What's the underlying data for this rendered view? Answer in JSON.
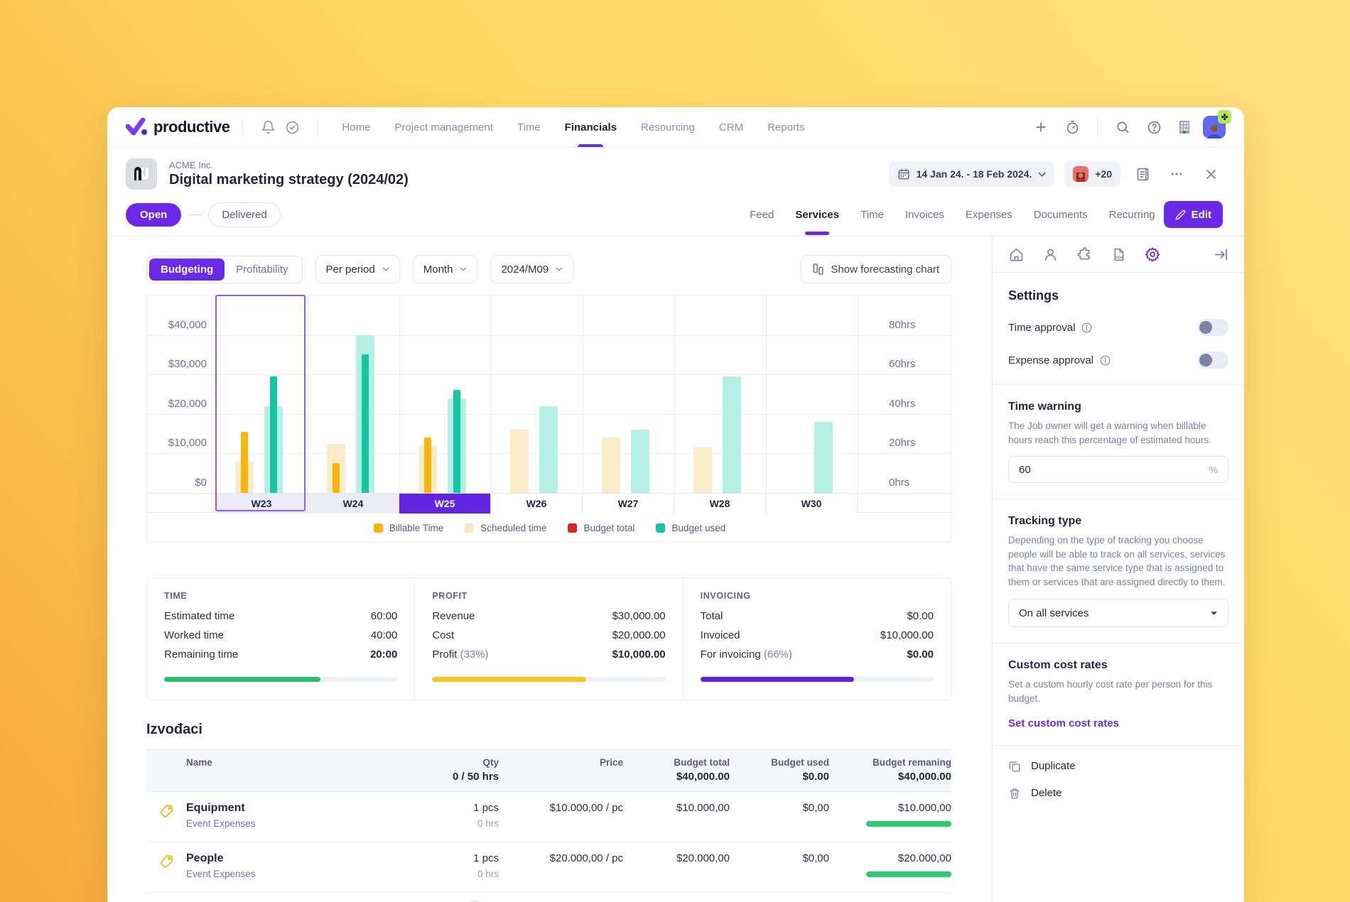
{
  "accent_color": "#6B28E9",
  "topnav": {
    "brand": "productive",
    "items": [
      "Home",
      "Project management",
      "Time",
      "Financials",
      "Resourcing",
      "CRM",
      "Reports"
    ],
    "active_item": "Financials"
  },
  "header": {
    "client_name": "ACME Inc.",
    "title": "Digital marketing strategy (2024/02)",
    "date_range": "14 Jan 24. - 18 Feb 2024.",
    "members_more": "+20"
  },
  "status": {
    "open_label": "Open",
    "delivered_label": "Delivered"
  },
  "tabs": {
    "items": [
      "Feed",
      "Services",
      "Time",
      "Invoices",
      "Expenses",
      "Documents",
      "Recurring"
    ],
    "active_item": "Services",
    "edit_label": "Edit"
  },
  "controls": {
    "view_options": [
      "Budgeting",
      "Profitability"
    ],
    "active_view": "Budgeting",
    "period_dropdown": "Per period",
    "granularity_dropdown": "Month",
    "month_dropdown": "2024/M09",
    "forecast_button": "Show forecasting chart"
  },
  "chart_data": {
    "type": "bar",
    "title": "",
    "categories": [
      "W23",
      "W24",
      "W25",
      "W26",
      "W27",
      "W28",
      "W30"
    ],
    "series": [
      {
        "name": "Scheduled time",
        "color": "#FAECC8",
        "bar": "wide-yellow",
        "values": [
          8000,
          12500,
          12000,
          16000,
          14000,
          11500,
          null
        ]
      },
      {
        "name": "Billable Time",
        "color": "#FBB40B",
        "bar": "narrow-yellow",
        "values": [
          15500,
          7500,
          14000,
          null,
          null,
          null,
          null
        ]
      },
      {
        "name": "Budget total",
        "color": "#B4F0E4",
        "bar": "wide-teal",
        "values": [
          22000,
          40000,
          24000,
          22000,
          16000,
          29500,
          18000
        ]
      },
      {
        "name": "Budget used",
        "color": "#14C6A4",
        "bar": "narrow-teal",
        "values": [
          29500,
          35000,
          26000,
          null,
          null,
          null,
          null
        ]
      }
    ],
    "left_axis_labels": [
      "$40,000",
      "$30,000",
      "$20,000",
      "$10,000",
      "$0"
    ],
    "right_axis_labels": [
      "80hrs",
      "60hrs",
      "40hrs",
      "20hrs",
      "0hrs"
    ],
    "ylim_money": [
      0,
      50000
    ],
    "grid": true,
    "selected_week": "W25",
    "outlined_week": "W23",
    "past_weeks": [
      "W23",
      "W24"
    ],
    "legend_position": "bottom",
    "legend": [
      {
        "label": "Billable Time",
        "color": "#FBB40B"
      },
      {
        "label": "Scheduled time",
        "color": "#FAE9C0"
      },
      {
        "label": "Budget total",
        "color": "#D7281D"
      },
      {
        "label": "Budget used",
        "color": "#10C3A5"
      }
    ]
  },
  "summary": {
    "time": {
      "title": "TIME",
      "rows": [
        {
          "label": "Estimated time",
          "value": "60:00",
          "bold": false
        },
        {
          "label": "Worked time",
          "value": "40:00",
          "bold": false
        },
        {
          "label": "Remaining time",
          "value": "20:00",
          "bold": true
        }
      ],
      "progress_pct": 67,
      "progress_color": "#25C16F"
    },
    "profit": {
      "title": "PROFIT",
      "rows": [
        {
          "label": "Revenue",
          "value": "$30,000.00",
          "bold": false
        },
        {
          "label": "Cost",
          "value": "$20,000.00",
          "bold": false
        },
        {
          "label": "Profit",
          "pct": "(33%)",
          "value": "$10,000.00",
          "bold": true
        }
      ],
      "progress_pct": 66,
      "progress_color": "#FCC419"
    },
    "invoicing": {
      "title": "INVOICING",
      "rows": [
        {
          "label": "Total",
          "value": "$0.00",
          "bold": false
        },
        {
          "label": "Invoiced",
          "value": "$10,000.00",
          "bold": false
        },
        {
          "label": "For invoicing",
          "pct": "(66%)",
          "value": "$0.00",
          "bold": true
        }
      ],
      "progress_pct": 66,
      "progress_color": "#5B21E6"
    }
  },
  "services_table": {
    "section_title": "Izvođaci",
    "headers": {
      "name": "Name",
      "qty": "Qty",
      "qty_sub": "0 / 50 hrs",
      "price": "Price",
      "budget_total": "Budget total",
      "budget_total_sub": "$40,000.00",
      "budget_used": "Budget used",
      "budget_used_sub": "$0.00",
      "budget_remaining": "Budget remaning",
      "budget_remaining_sub": "$40,000.00"
    },
    "rows": [
      {
        "name": "Equipment",
        "type": "Event Expenses",
        "qty": "1 pcs",
        "qty_sub": "0 hrs",
        "price": "$10.000,00 / pc",
        "budget_total": "$10.000,00",
        "budget_used": "$0,00",
        "budget_remaining": "$10.000,00",
        "remaining_bar_pct": 100,
        "remaining_bar_color": "#2BCB77"
      },
      {
        "name": "People",
        "type": "Event Expenses",
        "qty": "1 pcs",
        "qty_sub": "0 hrs",
        "price": "$20.000,00 / pc",
        "budget_total": "$20.000,00",
        "budget_used": "$0,00",
        "budget_remaining": "$20.000,00",
        "remaining_bar_pct": 100,
        "remaining_bar_color": "#2BCB77"
      }
    ]
  },
  "sidebar": {
    "settings_title": "Settings",
    "toggles": [
      {
        "label": "Time approval",
        "on": false
      },
      {
        "label": "Expense approval",
        "on": false
      }
    ],
    "time_warning": {
      "title": "Time warning",
      "description": "The Job owner will get a warning when billable hours reach this percentage of estimated hours.",
      "input_value": "60",
      "input_suffix": "%"
    },
    "tracking_type": {
      "title": "Tracking type",
      "description": "Depending on the type of tracking you choose people will be able to track on all services, services that have the same service type that is assigned to them or services that are assigned directly to them.",
      "selected_option": "On all services"
    },
    "custom_cost_rates": {
      "title": "Custom cost rates",
      "description": "Set a custom hourly cost rate per person for this budget.",
      "link_label": "Set custom cost rates"
    },
    "actions": {
      "duplicate": "Duplicate",
      "delete": "Delete"
    }
  }
}
